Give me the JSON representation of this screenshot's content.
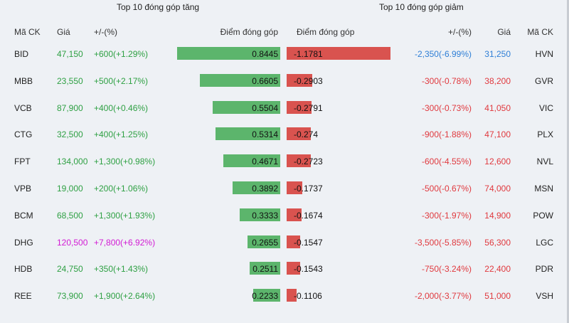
{
  "titles": {
    "gainers": "Top 10 đóng góp tăng",
    "losers": "Top 10 đóng góp giảm"
  },
  "headers": {
    "left_code": "Mã CK",
    "left_price": "Giá",
    "left_change": "+/-(%)",
    "left_points": "Điểm đóng góp",
    "right_points": "Điểm đóng góp",
    "right_change": "+/-(%)",
    "right_price": "Giá",
    "right_code": "Mã CK"
  },
  "colors": {
    "up": "#2ea043",
    "ceiling": "#d21bd4",
    "down": "#e0393e",
    "floor": "#2f7fd6",
    "bar_up": "#5cb56c",
    "bar_down": "#d9534f"
  },
  "gainers": [
    {
      "code": "BID",
      "price": "47,150",
      "change": "+600(+1.29%)",
      "points": "0.8445",
      "value": 0.8445,
      "status": "up"
    },
    {
      "code": "MBB",
      "price": "23,550",
      "change": "+500(+2.17%)",
      "points": "0.6605",
      "value": 0.6605,
      "status": "up"
    },
    {
      "code": "VCB",
      "price": "87,900",
      "change": "+400(+0.46%)",
      "points": "0.5504",
      "value": 0.5504,
      "status": "up"
    },
    {
      "code": "CTG",
      "price": "32,500",
      "change": "+400(+1.25%)",
      "points": "0.5314",
      "value": 0.5314,
      "status": "up"
    },
    {
      "code": "FPT",
      "price": "134,000",
      "change": "+1,300(+0.98%)",
      "points": "0.4671",
      "value": 0.4671,
      "status": "up"
    },
    {
      "code": "VPB",
      "price": "19,000",
      "change": "+200(+1.06%)",
      "points": "0.3892",
      "value": 0.3892,
      "status": "up"
    },
    {
      "code": "BCM",
      "price": "68,500",
      "change": "+1,300(+1.93%)",
      "points": "0.3333",
      "value": 0.3333,
      "status": "up"
    },
    {
      "code": "DHG",
      "price": "120,500",
      "change": "+7,800(+6.92%)",
      "points": "0.2655",
      "value": 0.2655,
      "status": "ceiling"
    },
    {
      "code": "HDB",
      "price": "24,750",
      "change": "+350(+1.43%)",
      "points": "0.2511",
      "value": 0.2511,
      "status": "up"
    },
    {
      "code": "REE",
      "price": "73,900",
      "change": "+1,900(+2.64%)",
      "points": "0.2233",
      "value": 0.2233,
      "status": "up"
    }
  ],
  "losers": [
    {
      "code": "HVN",
      "price": "31,250",
      "change": "-2,350(-6.99%)",
      "points": "-1.1781",
      "value": -1.1781,
      "status": "floor"
    },
    {
      "code": "GVR",
      "price": "38,200",
      "change": "-300(-0.78%)",
      "points": "-0.2903",
      "value": -0.2903,
      "status": "down"
    },
    {
      "code": "VIC",
      "price": "41,050",
      "change": "-300(-0.73%)",
      "points": "-0.2791",
      "value": -0.2791,
      "status": "down"
    },
    {
      "code": "PLX",
      "price": "47,100",
      "change": "-900(-1.88%)",
      "points": "-0.274",
      "value": -0.274,
      "status": "down"
    },
    {
      "code": "NVL",
      "price": "12,600",
      "change": "-600(-4.55%)",
      "points": "-0.2723",
      "value": -0.2723,
      "status": "down"
    },
    {
      "code": "MSN",
      "price": "74,000",
      "change": "-500(-0.67%)",
      "points": "-0.1737",
      "value": -0.1737,
      "status": "down"
    },
    {
      "code": "POW",
      "price": "14,900",
      "change": "-300(-1.97%)",
      "points": "-0.1674",
      "value": -0.1674,
      "status": "down"
    },
    {
      "code": "LGC",
      "price": "56,300",
      "change": "-3,500(-5.85%)",
      "points": "-0.1547",
      "value": -0.1547,
      "status": "down"
    },
    {
      "code": "PDR",
      "price": "22,400",
      "change": "-750(-3.24%)",
      "points": "-0.1543",
      "value": -0.1543,
      "status": "down"
    },
    {
      "code": "VSH",
      "price": "51,000",
      "change": "-2,000(-3.77%)",
      "points": "-0.1106",
      "value": -0.1106,
      "status": "down"
    }
  ]
}
